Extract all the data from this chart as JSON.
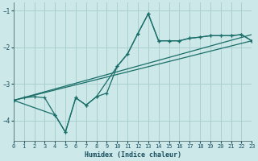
{
  "xlabel": "Humidex (Indice chaleur)",
  "bg_color": "#cce8e8",
  "line_color": "#1a6e6a",
  "grid_color": "#aacece",
  "xlim": [
    0,
    23
  ],
  "ylim": [
    -4.55,
    -0.78
  ],
  "yticks": [
    -1,
    -2,
    -3,
    -4
  ],
  "xticks": [
    0,
    1,
    2,
    3,
    4,
    5,
    6,
    7,
    8,
    9,
    10,
    11,
    12,
    13,
    14,
    15,
    16,
    17,
    18,
    19,
    20,
    21,
    22,
    23
  ],
  "line1_x": [
    0,
    1,
    2,
    3,
    4,
    5,
    6,
    7,
    8,
    9,
    10,
    11,
    12,
    13,
    14,
    15,
    16,
    17,
    18,
    19,
    20,
    21,
    22,
    23
  ],
  "line1_y": [
    -3.45,
    -3.38,
    -3.35,
    -3.38,
    -3.85,
    -4.32,
    -3.38,
    -3.58,
    -3.35,
    -3.25,
    -2.52,
    -2.18,
    -1.62,
    -1.08,
    -1.82,
    -1.82,
    -1.82,
    -1.75,
    -1.72,
    -1.68,
    -1.68,
    -1.68,
    -1.65,
    -1.82
  ],
  "line2_x": [
    0,
    4,
    5,
    6,
    7,
    8,
    10,
    11,
    12,
    13,
    14,
    15,
    16,
    17,
    18,
    19,
    20,
    21,
    22,
    23
  ],
  "line2_y": [
    -3.45,
    -3.85,
    -4.32,
    -3.38,
    -3.58,
    -3.35,
    -2.52,
    -2.18,
    -1.62,
    -1.08,
    -1.82,
    -1.82,
    -1.82,
    -1.75,
    -1.72,
    -1.68,
    -1.68,
    -1.68,
    -1.65,
    -1.82
  ],
  "line3_x": [
    0,
    23
  ],
  "line3_y": [
    -3.45,
    -1.82
  ],
  "line4_x": [
    0,
    23
  ],
  "line4_y": [
    -3.45,
    -1.65
  ]
}
